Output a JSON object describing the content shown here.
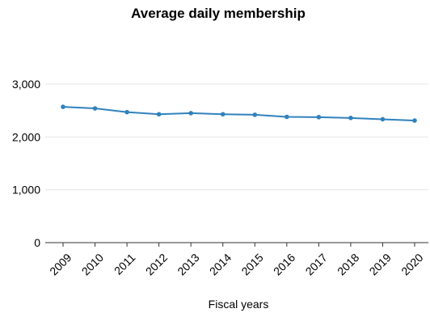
{
  "chart_data": {
    "type": "line",
    "title": "Average daily membership",
    "xlabel": "Fiscal years",
    "ylabel": "",
    "x": [
      "2009",
      "2010",
      "2011",
      "2012",
      "2013",
      "2014",
      "2015",
      "2016",
      "2017",
      "2018",
      "2019",
      "2020"
    ],
    "series": [
      {
        "values": [
          2570,
          2540,
          2470,
          2430,
          2450,
          2430,
          2420,
          2380,
          2375,
          2360,
          2335,
          2310
        ],
        "color": "#3182bd"
      }
    ],
    "ylim": [
      0,
      3000
    ],
    "yticks": [
      0,
      1000,
      2000,
      3000
    ],
    "ytick_labels": [
      "0",
      "1,000",
      "2,000",
      "3,000"
    ],
    "grid": "horizontal",
    "legend": "none",
    "marker": "circle"
  }
}
